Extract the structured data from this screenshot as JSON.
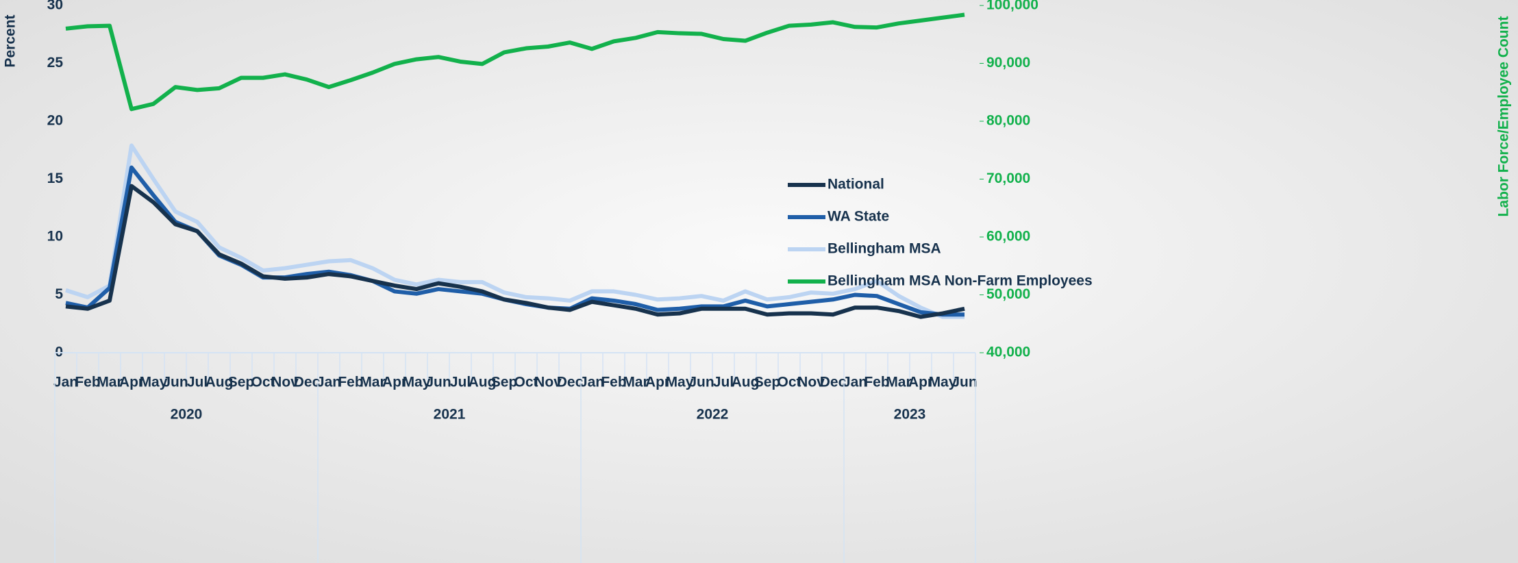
{
  "chart_data": {
    "type": "line",
    "categories": [
      "Jan",
      "Feb",
      "Mar",
      "Apr",
      "May",
      "Jun",
      "Jul",
      "Aug",
      "Sep",
      "Oct",
      "Nov",
      "Dec",
      "Jan",
      "Feb",
      "Mar",
      "Apr",
      "May",
      "Jun",
      "Jul",
      "Aug",
      "Sep",
      "Oct",
      "Nov",
      "Dec",
      "Jan",
      "Feb",
      "Mar",
      "Apr",
      "May",
      "Jun",
      "Jul",
      "Aug",
      "Sep",
      "Oct",
      "Nov",
      "Dec",
      "Jan",
      "Feb",
      "Mar",
      "Apr",
      "May",
      "Jun"
    ],
    "years": [
      "2020",
      "2021",
      "2022",
      "2023"
    ],
    "y_label": "Percent",
    "y2_label": "Labor Force/Employee Count",
    "ylim": [
      0,
      30
    ],
    "yticks": [
      0,
      5,
      10,
      15,
      20,
      25,
      30
    ],
    "y2lim": [
      40000,
      100000
    ],
    "y2ticks": [
      {
        "value": 40000,
        "label": "40,000"
      },
      {
        "value": 50000,
        "label": "50,000"
      },
      {
        "value": 60000,
        "label": "60,000"
      },
      {
        "value": 70000,
        "label": "70,000"
      },
      {
        "value": 80000,
        "label": "80,000"
      },
      {
        "value": 90000,
        "label": "90,000"
      },
      {
        "value": 100000,
        "label": "100,000"
      }
    ],
    "series": [
      {
        "name": "National",
        "color": "#17324d",
        "values": [
          4.0,
          3.8,
          4.5,
          14.4,
          13.0,
          11.1,
          10.5,
          8.5,
          7.7,
          6.6,
          6.4,
          6.5,
          6.8,
          6.6,
          6.2,
          5.8,
          5.5,
          6.0,
          5.7,
          5.3,
          4.6,
          4.3,
          3.9,
          3.7,
          4.4,
          4.1,
          3.8,
          3.3,
          3.4,
          3.8,
          3.8,
          3.8,
          3.3,
          3.4,
          3.4,
          3.3,
          3.9,
          3.9,
          3.6,
          3.1,
          3.4,
          3.8
        ]
      },
      {
        "name": "WA State",
        "color": "#1f5ea8",
        "values": [
          4.3,
          3.9,
          5.6,
          16.0,
          13.6,
          11.3,
          10.5,
          8.4,
          7.6,
          6.5,
          6.5,
          6.8,
          7.0,
          6.7,
          6.2,
          5.3,
          5.1,
          5.5,
          5.3,
          5.1,
          4.6,
          4.2,
          3.9,
          3.8,
          4.7,
          4.5,
          4.2,
          3.7,
          3.8,
          4.0,
          4.0,
          4.5,
          4.0,
          4.2,
          4.4,
          4.6,
          5.0,
          4.9,
          4.2,
          3.5,
          3.3,
          3.3
        ]
      },
      {
        "name": "Bellingham MSA",
        "color": "#bcd4f2",
        "values": [
          5.4,
          4.8,
          5.8,
          17.9,
          15.0,
          12.2,
          11.3,
          9.1,
          8.2,
          7.1,
          7.3,
          7.6,
          7.9,
          8.0,
          7.3,
          6.3,
          5.9,
          6.3,
          6.1,
          6.1,
          5.2,
          4.8,
          4.7,
          4.5,
          5.3,
          5.3,
          5.0,
          4.6,
          4.7,
          4.9,
          4.5,
          5.3,
          4.6,
          4.8,
          5.2,
          5.1,
          5.5,
          6.2,
          4.9,
          3.9,
          3.1,
          3.1
        ]
      },
      {
        "name": "Bellingham MSA Non-Farm Employees",
        "color": "#12b14c",
        "axis": "y2",
        "values": [
          96000,
          96400,
          96500,
          82100,
          83000,
          85900,
          85400,
          85700,
          87500,
          87500,
          88100,
          87200,
          85900,
          87100,
          88400,
          89900,
          90700,
          91100,
          90300,
          89900,
          91900,
          92600,
          92900,
          93600,
          92500,
          93800,
          94400,
          95400,
          95200,
          95100,
          94200,
          93900,
          95300,
          96500,
          96700,
          97100,
          96300,
          96200,
          96900,
          97400,
          97900,
          98400
        ]
      }
    ]
  }
}
